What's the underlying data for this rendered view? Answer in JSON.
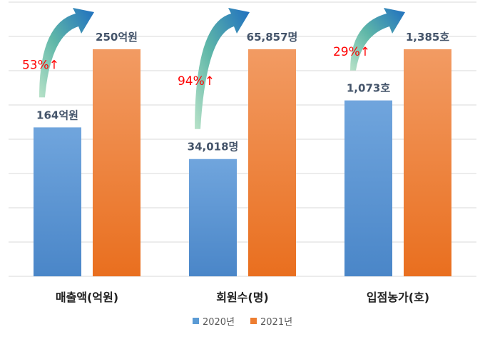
{
  "chart_data": {
    "type": "bar",
    "categories": [
      "매출액(억원)",
      "회원수(명)",
      "입점농가(호)"
    ],
    "series": [
      {
        "name": "2020년",
        "values": [
          164,
          34018,
          1073
        ],
        "labels": [
          "164억원",
          "34,018명",
          "1,073호"
        ]
      },
      {
        "name": "2021년",
        "values": [
          250,
          65857,
          1385
        ],
        "labels": [
          "250억원",
          "65,857명",
          "1,385호"
        ]
      }
    ],
    "growth": [
      "53%↑",
      "94%↑",
      "29%↑"
    ],
    "grid": true,
    "legend_position": "bottom",
    "colors": {
      "s2020_top": "#70a5dd",
      "s2020_bottom": "#4a86c8",
      "s2021_top": "#f29b63",
      "s2021_bottom": "#e96f1f",
      "grid": "#d9d9d9",
      "arrow_start": "#b8e2c8",
      "arrow_end": "#1f6fc0",
      "growth_text": "#ff0000"
    }
  },
  "legend": {
    "items": [
      {
        "label": "2020년",
        "color": "#5b9bd5"
      },
      {
        "label": "2021년",
        "color": "#ed7d31"
      }
    ]
  }
}
